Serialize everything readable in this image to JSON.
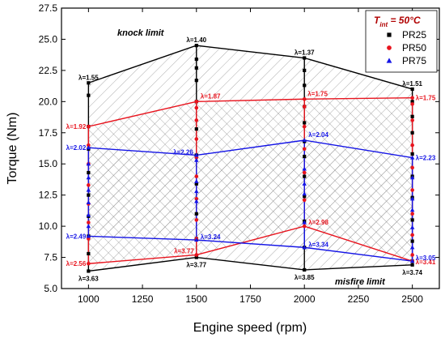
{
  "chart_data": {
    "type": "line",
    "xlabel": "Engine speed (rpm)",
    "ylabel": "Torque (Nm)",
    "xlim": [
      875,
      2625
    ],
    "ylim": [
      5.0,
      27.5
    ],
    "x_ticks": [
      1000,
      1250,
      1500,
      1750,
      2000,
      2250,
      2500
    ],
    "y_ticks": [
      5.0,
      7.5,
      10.0,
      12.5,
      15.0,
      17.5,
      20.0,
      22.5,
      25.0,
      27.5
    ],
    "x_tick_labels": [
      "1000",
      "1250",
      "1500",
      "1750",
      "2000",
      "2250",
      "2500"
    ],
    "y_tick_labels": [
      "5.0",
      "7.5",
      "10.0",
      "12.5",
      "15.0",
      "17.5",
      "20.0",
      "22.5",
      "25.0",
      "27.5"
    ],
    "legend": {
      "position": "top-right",
      "title_main": "T",
      "title_sub": "int",
      "title_rest": " = 50°C"
    },
    "annotations": {
      "knock": "knock limit",
      "misfire": "misfire limit"
    },
    "series": [
      {
        "name": "PR25",
        "color": "#000000",
        "marker": "square",
        "upper": {
          "x": [
            1000,
            1500,
            2000,
            2500
          ],
          "y": [
            21.5,
            24.5,
            23.5,
            21.0
          ],
          "labels": [
            "λ=1.55",
            "λ=1.40",
            "λ=1.37",
            "λ=1.51"
          ]
        },
        "lower": {
          "x": [
            1000,
            1500,
            2000,
            2500
          ],
          "y": [
            6.4,
            7.5,
            6.5,
            6.9
          ],
          "labels": [
            "λ=3.63",
            "λ=3.77",
            "λ=3.85",
            "λ=3.74"
          ]
        },
        "points": [
          {
            "x": 1000,
            "y": [
              21.5,
              20.5,
              18.0,
              16.2,
              14.3,
              12.5,
              10.8,
              9.2,
              7.8,
              6.4
            ]
          },
          {
            "x": 1500,
            "y": [
              24.5,
              23.4,
              22.7,
              21.7,
              20.0,
              17.8,
              15.7,
              13.4,
              11.0,
              9.0,
              7.5
            ]
          },
          {
            "x": 2000,
            "y": [
              23.5,
              22.5,
              21.3,
              19.6,
              18.3,
              16.8,
              15.6,
              14.0,
              12.4,
              10.4,
              8.3,
              6.5
            ]
          },
          {
            "x": 2500,
            "y": [
              21.0,
              20.0,
              18.8,
              17.5,
              15.8,
              14.0,
              12.3,
              10.5,
              8.8,
              7.2,
              6.9
            ]
          }
        ]
      },
      {
        "name": "PR50",
        "color": "#e8141e",
        "marker": "circle",
        "upper": {
          "x": [
            1000,
            1500,
            2000,
            2500
          ],
          "y": [
            18.0,
            20.0,
            20.2,
            20.3
          ],
          "labels": [
            "λ=1.92",
            "λ=1.87",
            "λ=1.75",
            "λ=1.75"
          ]
        },
        "lower": {
          "x": [
            1000,
            1500,
            2000,
            2500
          ],
          "y": [
            7.0,
            7.7,
            10.0,
            7.2
          ],
          "labels": [
            "λ=2.56",
            "λ=3.77",
            "λ=2.98",
            "λ=3.41"
          ]
        },
        "points": [
          {
            "x": 1000,
            "y": [
              18.0,
              16.5,
              15.0,
              13.3,
              11.8,
              10.3,
              9.0,
              7.0
            ]
          },
          {
            "x": 1500,
            "y": [
              20.0,
              19.5,
              18.5,
              17.0,
              15.5,
              14.0,
              12.2,
              10.5,
              9.0,
              7.7
            ]
          },
          {
            "x": 2000,
            "y": [
              20.2,
              19.6,
              18.0,
              16.2,
              14.3,
              12.1,
              10.0
            ]
          },
          {
            "x": 2500,
            "y": [
              20.3,
              19.8,
              18.5,
              16.5,
              14.7,
              12.9,
              11.0,
              9.3,
              7.7,
              7.2
            ]
          }
        ]
      },
      {
        "name": "PR75",
        "color": "#1414e6",
        "marker": "triangle",
        "upper": {
          "x": [
            1000,
            1500,
            2000,
            2500
          ],
          "y": [
            16.3,
            15.7,
            16.9,
            15.5
          ],
          "labels": [
            "λ=2.02",
            "λ=2.26",
            "λ=2.04",
            "λ=2.23"
          ]
        },
        "lower": {
          "x": [
            1000,
            1500,
            2000,
            2500
          ],
          "y": [
            9.2,
            8.9,
            8.3,
            7.2
          ],
          "labels": [
            "λ=2.49",
            "λ=3.24",
            "λ=3.34",
            "λ=3.05"
          ]
        },
        "points": [
          {
            "x": 1000,
            "y": [
              16.3,
              15.0,
              13.9,
              12.9,
              11.9,
              10.9,
              10.0,
              9.2
            ]
          },
          {
            "x": 1500,
            "y": [
              15.7,
              15.3,
              13.6,
              12.8,
              12.0,
              8.9
            ]
          },
          {
            "x": 2000,
            "y": [
              16.9,
              14.6,
              13.4,
              12.6,
              10.3,
              8.3
            ]
          },
          {
            "x": 2500,
            "y": [
              15.5,
              13.9,
              12.2,
              11.3,
              9.9,
              8.3,
              7.2
            ]
          }
        ]
      }
    ]
  }
}
